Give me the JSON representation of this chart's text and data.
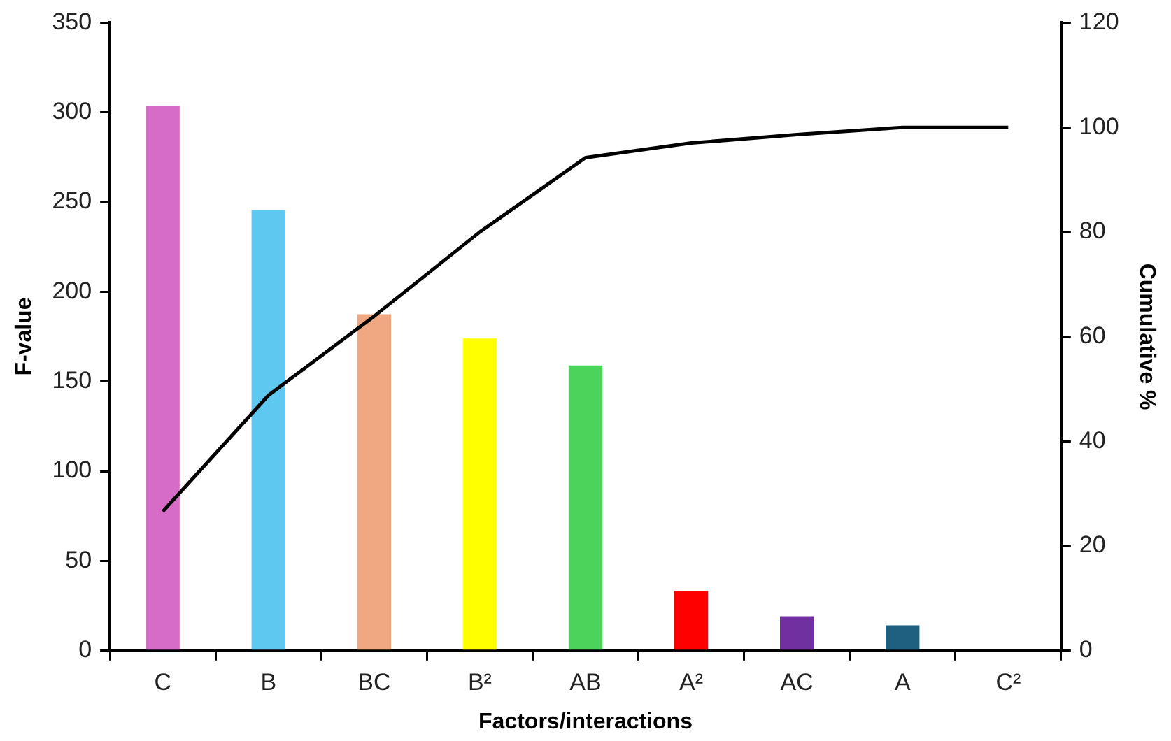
{
  "chart_data": {
    "type": "bar",
    "xlabel": "Factors/interactions",
    "ylabel": "F-value",
    "y2label": "Cumulative %",
    "categories": [
      "C",
      "B",
      "BC",
      "B²",
      "AB",
      "A²",
      "AC",
      "A",
      "C²"
    ],
    "series": [
      {
        "colors": [
          "#d76cc8",
          "#5ec8f0",
          "#f0a882",
          "#ffff00",
          "#4cd35c",
          "#ff0000",
          "#7030a0",
          "#1f5f80",
          "#808080"
        ],
        "values": [
          303.5,
          245.6,
          187.5,
          174,
          159,
          33.3,
          19.2,
          14.1,
          0
        ]
      },
      {
        "type": "line",
        "axis": "y2",
        "color": "#000000",
        "values": [
          26.6,
          48.8,
          63.9,
          80,
          94.2,
          97,
          98.6,
          100,
          100
        ]
      }
    ],
    "ylim": [
      0,
      350
    ],
    "yticks": [
      0,
      50,
      100,
      150,
      200,
      250,
      300,
      350
    ],
    "y2lim": [
      0,
      120
    ],
    "y2ticks": [
      0,
      20,
      40,
      60,
      80,
      100,
      120
    ],
    "grid": false,
    "legend": false,
    "marker": "none",
    "line_style": "solid"
  }
}
